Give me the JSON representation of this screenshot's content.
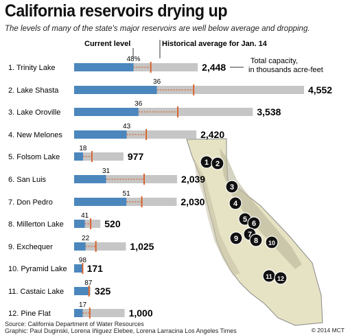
{
  "title": "California reservoirs drying up",
  "subtitle": "The levels of many of the state's major reservoirs are well below average and dropping.",
  "legend": {
    "current_level": "Current level",
    "historical_average": "Historical average for Jan. 14",
    "total_capacity": "Total capacity,\nin thousands acre-feet"
  },
  "source_line1": "Source: California Department of Water Resources",
  "source_line2": "Graphic: Paul Duginski, Lorena Iñiguez Elebee, Lorena Larracina Los Angeles Times",
  "credit": "© 2014 MCT",
  "colors": {
    "current": "#4b86bd",
    "capacity": "#c6c6c6",
    "average": "#d9622b",
    "land": "#e8e4c9",
    "marker": "#111111"
  },
  "chart_data": {
    "type": "bar",
    "title": "California reservoirs drying up",
    "unit_capacity": "thousands acre-feet",
    "unit_current": "percent of capacity",
    "categories": [
      "1. Trinity Lake",
      "2. Lake Shasta",
      "3. Lake Oroville",
      "4. New Melones",
      "5. Folsom Lake",
      "6. San Luis",
      "7. Don Pedro",
      "8. Millerton Lake",
      "9. Exchequer",
      "10. Pyramid Lake",
      "11. Castaic Lake",
      "12. Pine Flat"
    ],
    "series": [
      {
        "name": "Current level",
        "values": [
          48,
          36,
          36,
          43,
          18,
          31,
          51,
          41,
          22,
          98,
          87,
          17
        ],
        "first_label": "48%"
      },
      {
        "name": "Historical average for Jan. 14",
        "values": [
          62,
          52,
          58,
          59,
          36,
          68,
          66,
          63,
          42,
          99,
          91,
          31
        ]
      },
      {
        "name": "Total capacity",
        "values": [
          "2,448",
          "4,552",
          "3,538",
          "2,420",
          "977",
          "2,039",
          "2,030",
          "520",
          "1,025",
          "171",
          "325",
          "1,000"
        ],
        "numeric": [
          2448,
          4552,
          3538,
          2420,
          977,
          2039,
          2030,
          520,
          1025,
          171,
          325,
          1000
        ]
      }
    ]
  },
  "map_markers": [
    "1",
    "2",
    "3",
    "4",
    "5",
    "6",
    "7",
    "8",
    "9",
    "10",
    "11",
    "12"
  ]
}
